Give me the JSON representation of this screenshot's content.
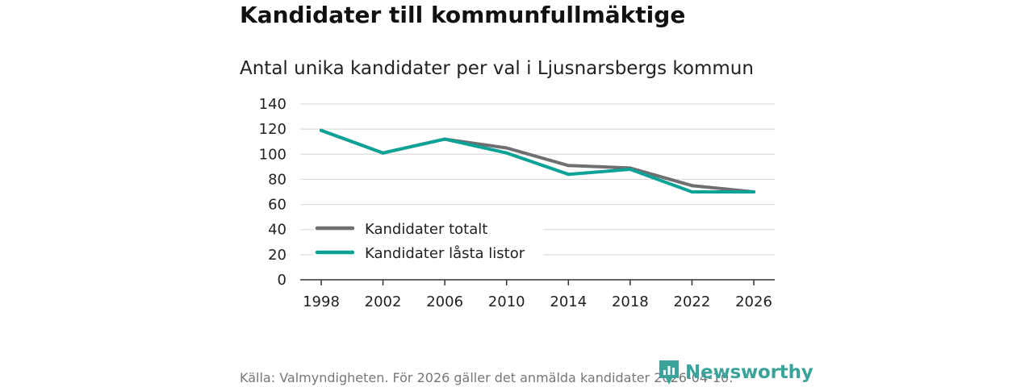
{
  "header": {
    "title": "Kandidater till kommunfullmäktige",
    "subtitle": "Antal unika kandidater per val i Ljusnarsbergs kommun"
  },
  "chart_data": {
    "type": "line",
    "title": "Kandidater till kommunfullmäktige",
    "subtitle": "Antal unika kandidater per val i Ljusnarsbergs kommun",
    "xlabel": "",
    "ylabel": "",
    "x": [
      1998,
      2002,
      2006,
      2010,
      2014,
      2018,
      2022,
      2026
    ],
    "ylim": [
      0,
      140
    ],
    "yticks": [
      0,
      20,
      40,
      60,
      80,
      100,
      120,
      140
    ],
    "grid": true,
    "legend_position": "bottom-left",
    "series": [
      {
        "name": "Kandidater totalt",
        "color": "#6e6e73",
        "values": [
          119,
          101,
          112,
          105,
          91,
          89,
          75,
          70
        ]
      },
      {
        "name": "Kandidater låsta listor",
        "color": "#0aa396",
        "values": [
          119,
          101,
          112,
          101,
          84,
          88,
          70,
          70
        ]
      }
    ]
  },
  "footer": {
    "source": "Källa: Valmyndigheten. För 2026 gäller det anmälda kandidater 2026-04-10.",
    "brand": "Newsworthy",
    "brand_color": "#3aa39a"
  }
}
